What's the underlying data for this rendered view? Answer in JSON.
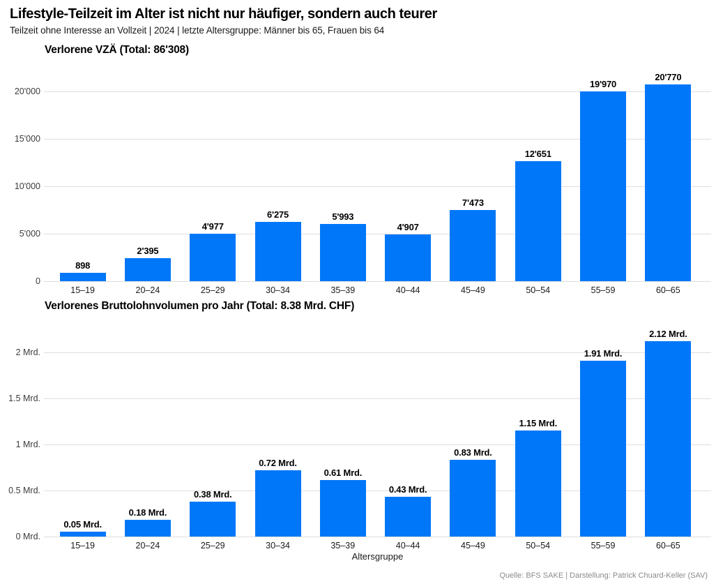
{
  "page": {
    "title": "Lifestyle-Teilzeit im Alter ist nicht nur häufiger, sondern auch teurer",
    "subtitle": "Teilzeit ohne Interesse an Vollzeit | 2024 | letzte Altersgruppe: Männer bis 65, Frauen bis 64",
    "source": "Quelle: BFS SAKE | Darstellung: Patrick Chuard-Keller (SAV)"
  },
  "colors": {
    "bar": "#0077f8",
    "grid": "#dedede",
    "tick": "#3c3c3c",
    "source": "#8a8a8a"
  },
  "chart_data": [
    {
      "type": "bar",
      "title": "Verlorene VZÄ (Total: 86'308)",
      "categories": [
        "15–19",
        "20–24",
        "25–29",
        "30–34",
        "35–39",
        "40–44",
        "45–49",
        "50–54",
        "55–59",
        "60–65"
      ],
      "values": [
        898,
        2395,
        4977,
        6275,
        5993,
        4907,
        7473,
        12651,
        19970,
        20770
      ],
      "value_labels": [
        "898",
        "2'395",
        "4'977",
        "6'275",
        "5'993",
        "4'907",
        "7'473",
        "12'651",
        "19'970",
        "20'770"
      ],
      "ytick_values": [
        0,
        5000,
        10000,
        15000,
        20000
      ],
      "ytick_labels": [
        "0",
        "5'000",
        "10'000",
        "15'000",
        "20'000"
      ],
      "xlabel": "",
      "ylabel": "",
      "ylim": [
        0,
        21000
      ],
      "grid": "horizontal",
      "legend": "none"
    },
    {
      "type": "bar",
      "title": "Verlorenes Bruttolohnvolumen pro Jahr (Total: 8.38 Mrd. CHF)",
      "categories": [
        "15–19",
        "20–24",
        "25–29",
        "30–34",
        "35–39",
        "40–44",
        "45–49",
        "50–54",
        "55–59",
        "60–65"
      ],
      "values": [
        0.05,
        0.18,
        0.38,
        0.72,
        0.61,
        0.43,
        0.83,
        1.15,
        1.91,
        2.12
      ],
      "value_labels": [
        "0.05 Mrd.",
        "0.18 Mrd.",
        "0.38 Mrd.",
        "0.72 Mrd.",
        "0.61 Mrd.",
        "0.43 Mrd.",
        "0.83 Mrd.",
        "1.15 Mrd.",
        "1.91 Mrd.",
        "2.12 Mrd."
      ],
      "ytick_values": [
        0,
        0.5,
        1,
        1.5,
        2
      ],
      "ytick_labels": [
        "0 Mrd.",
        "0.5 Mrd.",
        "1 Mrd.",
        "1.5 Mrd.",
        "2 Mrd."
      ],
      "xlabel": "Altersgruppe",
      "ylabel": "",
      "ylim": [
        0,
        2.2
      ],
      "grid": "horizontal",
      "legend": "none"
    }
  ]
}
